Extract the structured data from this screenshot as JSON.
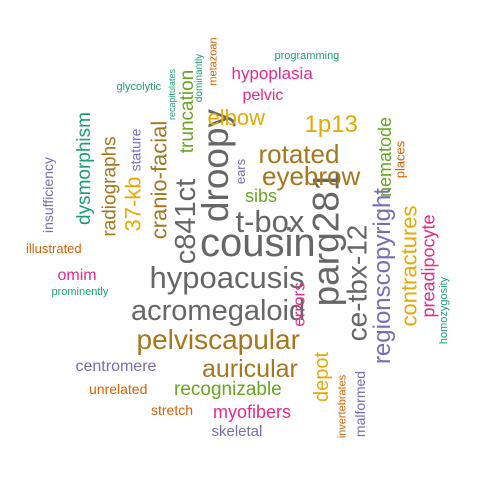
{
  "words": [
    {
      "text": "cousin",
      "color": "#666666"
    },
    {
      "text": "t-box",
      "color": "#666666"
    },
    {
      "text": "hypoacusis",
      "color": "#666666"
    },
    {
      "text": "acromegaloid",
      "color": "#666666"
    },
    {
      "text": "droopy",
      "color": "#666666"
    },
    {
      "text": "c841ct",
      "color": "#666666"
    },
    {
      "text": "parg281",
      "color": "#666666"
    },
    {
      "text": "ce-tbx-12",
      "color": "#666666"
    },
    {
      "text": "pelviscapular",
      "color": "#A6761D"
    },
    {
      "text": "auricular",
      "color": "#A6761D"
    },
    {
      "text": "rotated",
      "color": "#A6761D"
    },
    {
      "text": "eyebrow",
      "color": "#A6761D"
    },
    {
      "text": "regionscopyright",
      "color": "#7570B3"
    },
    {
      "text": "contractures",
      "color": "#E6AB02"
    },
    {
      "text": "cranio-facial",
      "color": "#A6761D"
    },
    {
      "text": "1p13",
      "color": "#E6AB02"
    },
    {
      "text": "elbow",
      "color": "#E6AB02"
    },
    {
      "text": "37-kb",
      "color": "#E6AB02"
    },
    {
      "text": "depot",
      "color": "#E6AB02"
    },
    {
      "text": "radiographs",
      "color": "#A6761D"
    },
    {
      "text": "dysmorphism",
      "color": "#1B9E77"
    },
    {
      "text": "truncation",
      "color": "#66A61E"
    },
    {
      "text": "recognizable",
      "color": "#66A61E"
    },
    {
      "text": "nematode",
      "color": "#66A61E"
    },
    {
      "text": "sibs",
      "color": "#66A61E"
    },
    {
      "text": "preadipocyte",
      "color": "#E7298A"
    },
    {
      "text": "myofibers",
      "color": "#E7298A"
    },
    {
      "text": "errors",
      "color": "#E7298A"
    },
    {
      "text": "hypoplasia",
      "color": "#E7298A"
    },
    {
      "text": "pelvic",
      "color": "#E7298A"
    },
    {
      "text": "omim",
      "color": "#E7298A"
    },
    {
      "text": "stretch",
      "color": "#D95F02"
    },
    {
      "text": "centromere",
      "color": "#7570B3"
    },
    {
      "text": "skeletal",
      "color": "#7570B3"
    },
    {
      "text": "malformed",
      "color": "#7570B3"
    },
    {
      "text": "insufficiency",
      "color": "#7570B3"
    },
    {
      "text": "stature",
      "color": "#7570B3"
    },
    {
      "text": "ears",
      "color": "#7570B3"
    },
    {
      "text": "unrelated",
      "color": "#D95F02"
    },
    {
      "text": "illustrated",
      "color": "#D95F02"
    },
    {
      "text": "places",
      "color": "#D95F02"
    },
    {
      "text": "invertebrates",
      "color": "#D95F02"
    },
    {
      "text": "metazoan",
      "color": "#D95F02"
    },
    {
      "text": "homozygosity",
      "color": "#1B9E77"
    },
    {
      "text": "programming",
      "color": "#1B9E77"
    },
    {
      "text": "prominently",
      "color": "#1B9E77"
    },
    {
      "text": "glycolytic",
      "color": "#1B9E77"
    },
    {
      "text": "dominantly",
      "color": "#1B9E77"
    },
    {
      "text": "recapitulates",
      "color": "#1B9E77"
    }
  ]
}
